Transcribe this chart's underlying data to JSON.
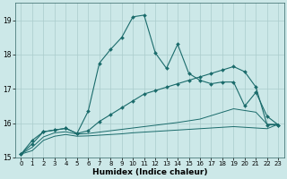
{
  "xlabel": "Humidex (Indice chaleur)",
  "bg_color": "#cce8e8",
  "grid_color": "#aacccc",
  "line_color": "#1a6b6b",
  "xlim": [
    -0.5,
    23.5
  ],
  "ylim": [
    15,
    19.5
  ],
  "yticks": [
    15,
    16,
    17,
    18,
    19
  ],
  "xticks": [
    0,
    1,
    2,
    3,
    4,
    5,
    6,
    7,
    8,
    9,
    10,
    11,
    12,
    13,
    14,
    15,
    16,
    17,
    18,
    19,
    20,
    21,
    22,
    23
  ],
  "line1_x": [
    0,
    1,
    2,
    3,
    4,
    5,
    6,
    7,
    8,
    9,
    10,
    11,
    12,
    13,
    14,
    15,
    16,
    17,
    18,
    19,
    20,
    21,
    22,
    23
  ],
  "line1_y": [
    15.1,
    15.5,
    15.75,
    15.8,
    15.85,
    15.7,
    16.35,
    17.75,
    18.15,
    18.5,
    19.1,
    19.15,
    18.05,
    17.6,
    18.3,
    17.45,
    17.25,
    17.15,
    17.2,
    17.2,
    16.5,
    16.9,
    16.2,
    15.95
  ],
  "line2_x": [
    0,
    1,
    2,
    3,
    4,
    5,
    6,
    7,
    8,
    9,
    10,
    11,
    12,
    13,
    14,
    15,
    16,
    17,
    18,
    19,
    20,
    21,
    22,
    23
  ],
  "line2_y": [
    15.1,
    15.4,
    15.75,
    15.8,
    15.85,
    15.7,
    15.78,
    16.05,
    16.25,
    16.45,
    16.65,
    16.85,
    16.95,
    17.05,
    17.15,
    17.25,
    17.35,
    17.45,
    17.55,
    17.65,
    17.5,
    17.05,
    15.95,
    15.95
  ],
  "line3_x": [
    0,
    1,
    2,
    3,
    4,
    5,
    6,
    7,
    8,
    9,
    10,
    11,
    12,
    13,
    14,
    15,
    16,
    17,
    18,
    19,
    20,
    21,
    22,
    23
  ],
  "line3_y": [
    15.1,
    15.3,
    15.6,
    15.72,
    15.75,
    15.68,
    15.7,
    15.74,
    15.78,
    15.82,
    15.86,
    15.9,
    15.94,
    15.98,
    16.02,
    16.07,
    16.12,
    16.22,
    16.32,
    16.42,
    16.37,
    16.32,
    15.97,
    15.97
  ],
  "line4_x": [
    0,
    1,
    2,
    3,
    4,
    5,
    6,
    7,
    8,
    9,
    10,
    11,
    12,
    13,
    14,
    15,
    16,
    17,
    18,
    19,
    20,
    21,
    22,
    23
  ],
  "line4_y": [
    15.1,
    15.2,
    15.5,
    15.62,
    15.67,
    15.62,
    15.63,
    15.65,
    15.67,
    15.69,
    15.72,
    15.74,
    15.76,
    15.78,
    15.8,
    15.82,
    15.84,
    15.86,
    15.88,
    15.9,
    15.88,
    15.86,
    15.84,
    15.97
  ]
}
